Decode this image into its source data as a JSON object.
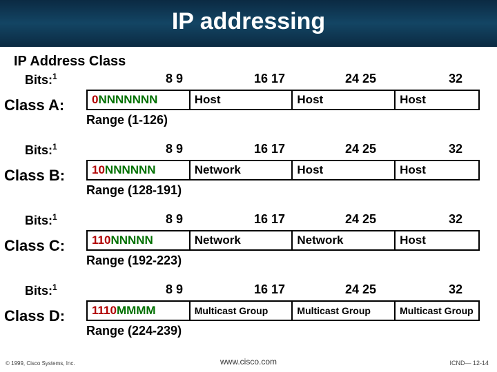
{
  "title": "IP addressing",
  "subtitle": "IP Address Class",
  "ticks": {
    "t1": "8  9",
    "t2": "16  17",
    "t3": "24  25",
    "t4": "32"
  },
  "classes": [
    {
      "bits_label": "Bits:",
      "bits_sup": "1",
      "class_label": "Class A:",
      "prefix_lead": "0",
      "prefix_body": "NNNNNNN",
      "box2": "Host",
      "box3": "Host",
      "box4": "Host",
      "range": "Range (1-126)"
    },
    {
      "bits_label": "Bits:",
      "bits_sup": "1",
      "class_label": "Class B:",
      "prefix_lead": "10",
      "prefix_body": "NNNNNN",
      "box2": "Network",
      "box3": "Host",
      "box4": "Host",
      "range": "Range (128-191)"
    },
    {
      "bits_label": "Bits:",
      "bits_sup": "1",
      "class_label": "Class C:",
      "prefix_lead": "110",
      "prefix_body": "NNNNN",
      "box2": "Network",
      "box3": "Network",
      "box4": "Host",
      "range": "Range (192-223)"
    },
    {
      "bits_label": "Bits:",
      "bits_sup": "1",
      "class_label": "Class D:",
      "prefix_lead": "1110",
      "prefix_body": "MMMM",
      "box2": "Multicast Group",
      "box3": "Multicast Group",
      "box4": "Multicast Group",
      "range": "Range (224-239)"
    }
  ],
  "footer": {
    "left": "© 1999, Cisco Systems, Inc.",
    "center": "www.cisco.com",
    "right": "ICND— 12-14"
  },
  "colors": {
    "header_bg": "#134564",
    "prefix_lead": "#b00000",
    "prefix_body": "#007000"
  }
}
